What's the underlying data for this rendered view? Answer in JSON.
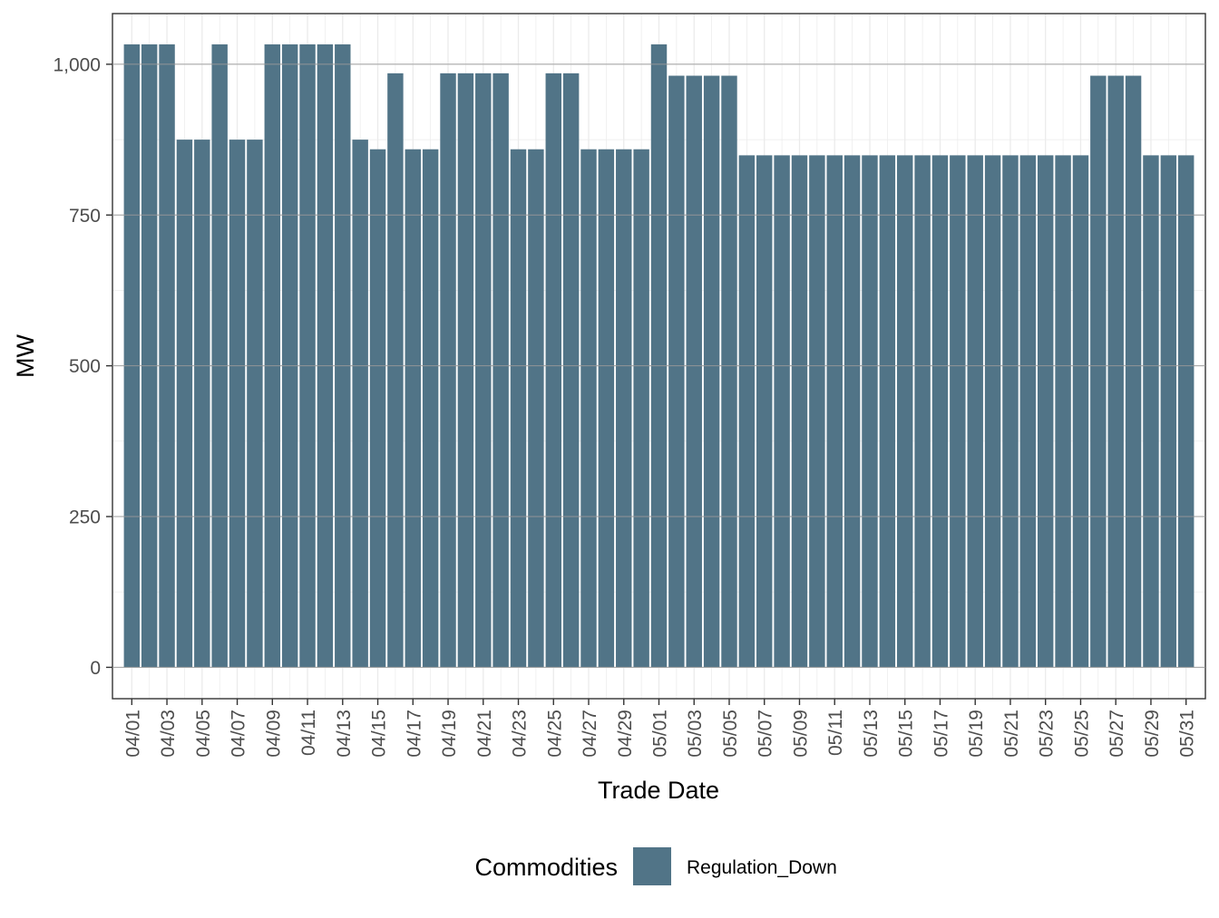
{
  "chart_data": {
    "type": "bar",
    "title": "",
    "xlabel": "Trade Date",
    "ylabel": "MW",
    "ylim": [
      -52,
      1084
    ],
    "yticks": [
      0,
      250,
      500,
      750,
      1000
    ],
    "ytick_labels": [
      "0",
      "250",
      "500",
      "750",
      "1,000"
    ],
    "grid": true,
    "legend": {
      "title": "Commodities",
      "placement": "bottom"
    },
    "categories": [
      "04/01",
      "04/02",
      "04/03",
      "04/04",
      "04/05",
      "04/06",
      "04/07",
      "04/08",
      "04/09",
      "04/10",
      "04/11",
      "04/12",
      "04/13",
      "04/14",
      "04/15",
      "04/16",
      "04/17",
      "04/18",
      "04/19",
      "04/20",
      "04/21",
      "04/22",
      "04/23",
      "04/24",
      "04/25",
      "04/26",
      "04/27",
      "04/28",
      "04/29",
      "04/30",
      "05/01",
      "05/02",
      "05/03",
      "05/04",
      "05/05",
      "05/06",
      "05/07",
      "05/08",
      "05/09",
      "05/10",
      "05/11",
      "05/12",
      "05/13",
      "05/14",
      "05/15",
      "05/16",
      "05/17",
      "05/18",
      "05/19",
      "05/20",
      "05/21",
      "05/22",
      "05/23",
      "05/24",
      "05/25",
      "05/26",
      "05/27",
      "05/28",
      "05/29",
      "05/30",
      "05/31"
    ],
    "xtick_labels": [
      "04/01",
      "04/03",
      "04/05",
      "04/07",
      "04/09",
      "04/11",
      "04/13",
      "04/15",
      "04/17",
      "04/19",
      "04/21",
      "04/23",
      "04/25",
      "04/27",
      "04/29",
      "05/01",
      "05/03",
      "05/05",
      "05/07",
      "05/09",
      "05/11",
      "05/13",
      "05/15",
      "05/17",
      "05/19",
      "05/21",
      "05/23",
      "05/25",
      "05/27",
      "05/29",
      "05/31"
    ],
    "series": [
      {
        "name": "Regulation_Down",
        "color": "#517487",
        "values": [
          1033,
          1033,
          1033,
          875,
          875,
          1033,
          875,
          875,
          1033,
          1033,
          1033,
          1033,
          1033,
          875,
          859,
          985,
          859,
          859,
          985,
          985,
          985,
          985,
          859,
          859,
          985,
          985,
          859,
          859,
          859,
          859,
          1033,
          981,
          981,
          981,
          981,
          849,
          849,
          849,
          849,
          849,
          849,
          849,
          849,
          849,
          849,
          849,
          849,
          849,
          849,
          849,
          849,
          849,
          849,
          849,
          849,
          981,
          981,
          981,
          849,
          849,
          849
        ]
      }
    ]
  }
}
